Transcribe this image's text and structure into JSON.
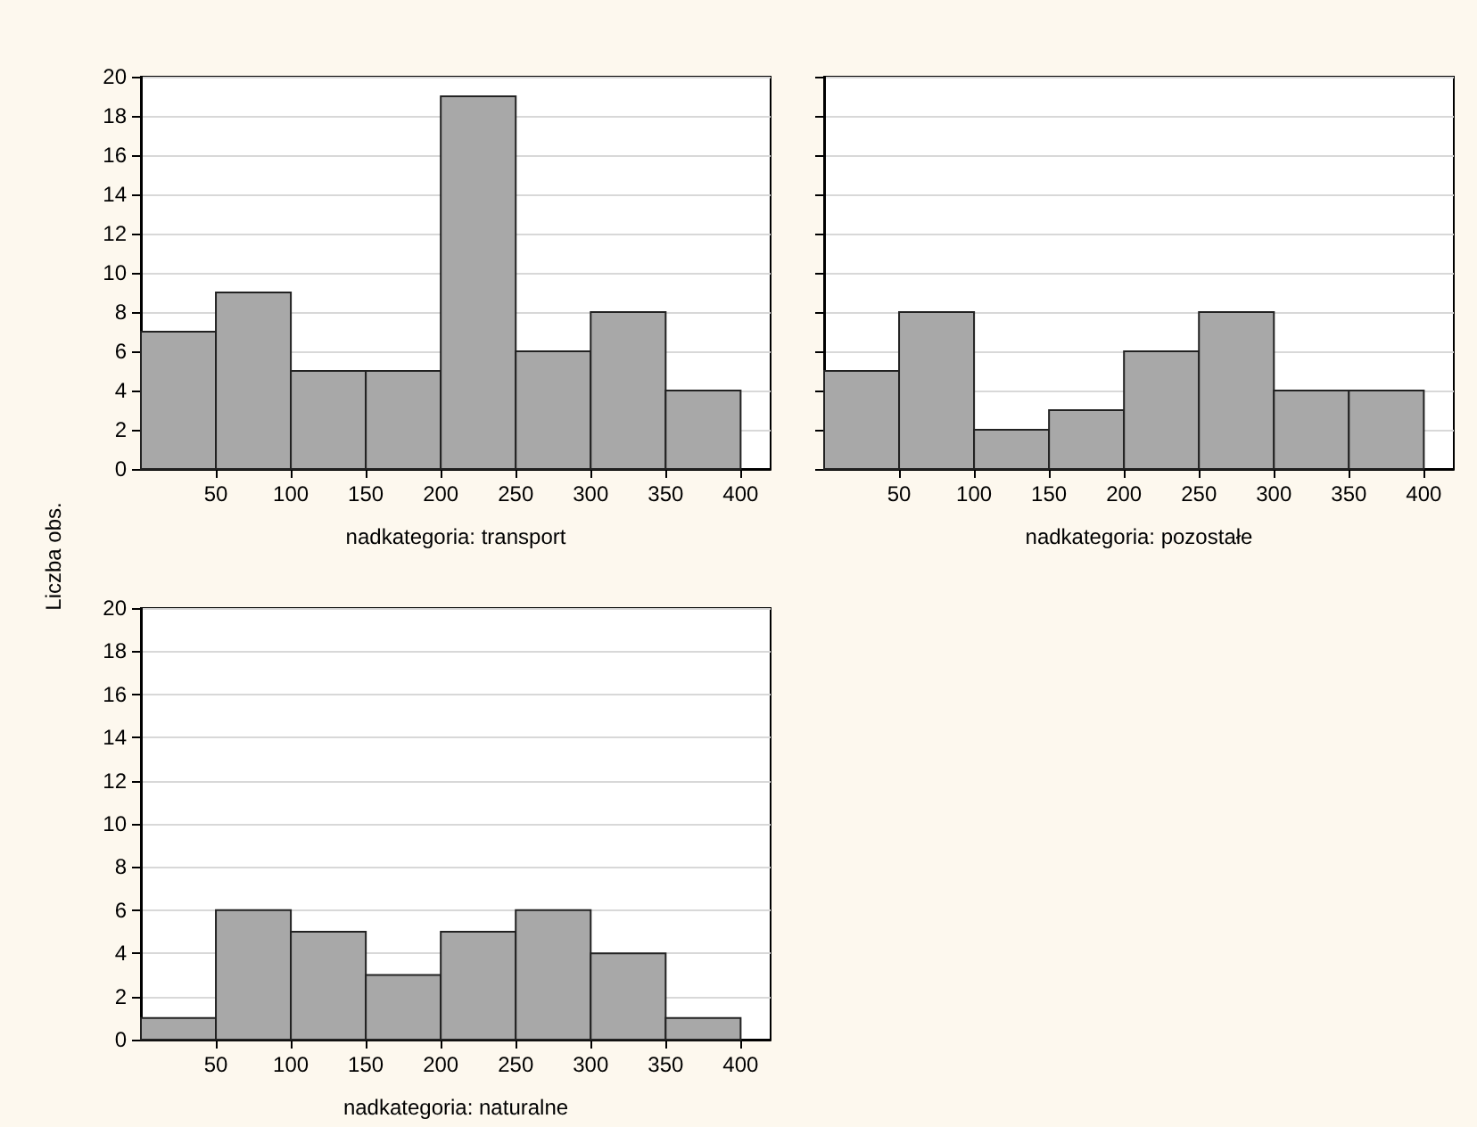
{
  "chart_data": [
    {
      "type": "histogram",
      "xlabel": "nadkategoria: transport",
      "ylabel": "Liczba obs.",
      "bins": [
        0,
        50,
        100,
        150,
        200,
        250,
        300,
        350,
        400
      ],
      "values": [
        7,
        9,
        5,
        5,
        19,
        6,
        8,
        4
      ],
      "color": "#a8a8a8",
      "xlim": [
        0,
        420
      ],
      "xticks": [
        50,
        100,
        150,
        200,
        250,
        300,
        350,
        400
      ],
      "ylim": [
        0,
        20
      ],
      "yticks": [
        0,
        2,
        4,
        6,
        8,
        10,
        12,
        14,
        16,
        18,
        20
      ],
      "grid": "y"
    },
    {
      "type": "histogram",
      "xlabel": "nadkategoria: pozostałe",
      "bins": [
        0,
        50,
        100,
        150,
        200,
        250,
        300,
        350,
        400
      ],
      "values": [
        5,
        8,
        2,
        3,
        6,
        8,
        4,
        4
      ],
      "color": "#a8a8a8",
      "xlim": [
        0,
        420
      ],
      "xticks": [
        50,
        100,
        150,
        200,
        250,
        300,
        350,
        400
      ],
      "ylim": [
        0,
        20
      ],
      "yticks": [
        0,
        2,
        4,
        6,
        8,
        10,
        12,
        14,
        16,
        18,
        20
      ],
      "grid": "y",
      "tick_labels": "x"
    },
    {
      "type": "histogram",
      "xlabel": "nadkategoria: naturalne",
      "bins": [
        0,
        50,
        100,
        150,
        200,
        250,
        300,
        350,
        400
      ],
      "values": [
        1,
        6,
        5,
        3,
        5,
        6,
        4,
        1
      ],
      "color": "#a8a8a8",
      "xlim": [
        0,
        420
      ],
      "xticks": [
        50,
        100,
        150,
        200,
        250,
        300,
        350,
        400
      ],
      "ylim": [
        0,
        20
      ],
      "yticks": [
        0,
        2,
        4,
        6,
        8,
        10,
        12,
        14,
        16,
        18,
        20
      ],
      "grid": "y"
    }
  ]
}
